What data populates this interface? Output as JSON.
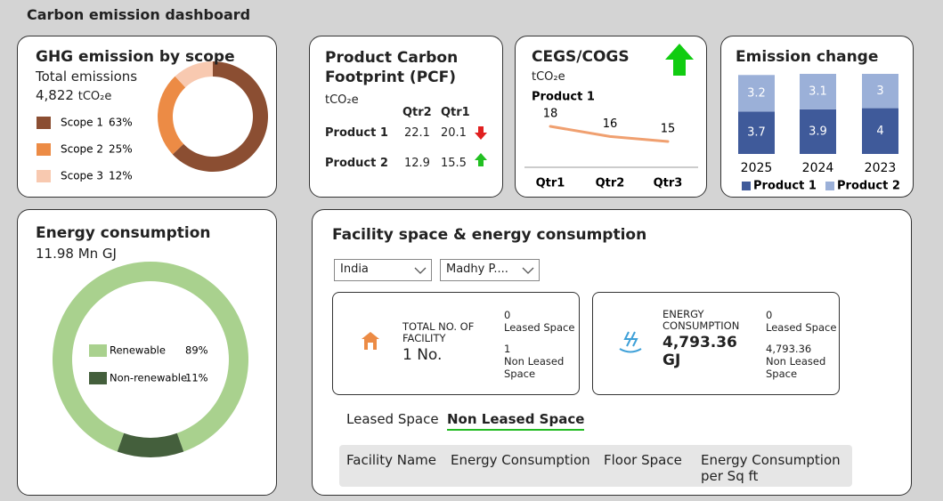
{
  "title": "Carbon emission dashboard",
  "chart_data": [
    {
      "type": "pie",
      "title": "GHG emission by scope",
      "subtitle": "Total emissions",
      "total": "4,822",
      "unit": "tCO₂e",
      "categories": [
        "Scope 1",
        "Scope 2",
        "Scope 3"
      ],
      "values": [
        63,
        25,
        12
      ],
      "value_labels": [
        "63%",
        "25%",
        "12%"
      ],
      "colors": [
        "#8b4e32",
        "#ec8b45",
        "#f8c9b0"
      ]
    },
    {
      "type": "pie",
      "title": "Energy consumption",
      "total": "11.98 Mn GJ",
      "categories": [
        "Renewable",
        "Non-renewable"
      ],
      "values": [
        89,
        11
      ],
      "value_labels": [
        "89%",
        "11%"
      ],
      "colors": [
        "#a9d18e",
        "#445f3c"
      ]
    },
    {
      "type": "line",
      "title": "CEGS/COGS",
      "unit": "tCO₂e",
      "categories": [
        "Qtr1",
        "Qtr2",
        "Qtr3"
      ],
      "series": [
        {
          "name": "Product 1",
          "color": "#f0a070",
          "values": [
            18,
            16,
            15
          ]
        }
      ]
    },
    {
      "type": "bar",
      "stacked": true,
      "title": "Emission change",
      "categories": [
        "2025",
        "2024",
        "2023"
      ],
      "series": [
        {
          "name": "Product 1",
          "color": "#3f5a9a",
          "values": [
            3.7,
            3.9,
            4
          ]
        },
        {
          "name": "Product 2",
          "color": "#9bb0d8",
          "values": [
            3.2,
            3.1,
            3
          ]
        }
      ]
    }
  ],
  "pcf": {
    "title": "Product Carbon Footprint (PCF)",
    "unit": "tCO₂e",
    "columns": [
      "Qtr2",
      "Qtr1"
    ],
    "rows": [
      [
        "Product 1",
        "22.1",
        "20.1"
      ],
      [
        "Product 2",
        "12.9",
        "15.5"
      ]
    ]
  },
  "facility": {
    "title": "Facility space & energy consumption",
    "filters": [
      "India",
      "Madhy P...."
    ],
    "cards": [
      {
        "label": "TOTAL NO. OF FACILITY",
        "value": "1 No.",
        "leased_value": "0",
        "leased_label": "Leased Space",
        "non_leased_value": "1",
        "non_leased_label": "Non Leased Space"
      },
      {
        "label": "ENERGY CONSUMPTION",
        "value": "4,793.36 GJ",
        "leased_value": "0",
        "leased_label": "Leased Space",
        "non_leased_value": "4,793.36",
        "non_leased_label": "Non Leased Space"
      }
    ],
    "tabs": [
      "Leased Space",
      "Non Leased Space"
    ],
    "table_headers": [
      "Facility Name",
      "Energy Consumption",
      "Floor Space",
      "Energy Consumption per Sq ft"
    ]
  }
}
